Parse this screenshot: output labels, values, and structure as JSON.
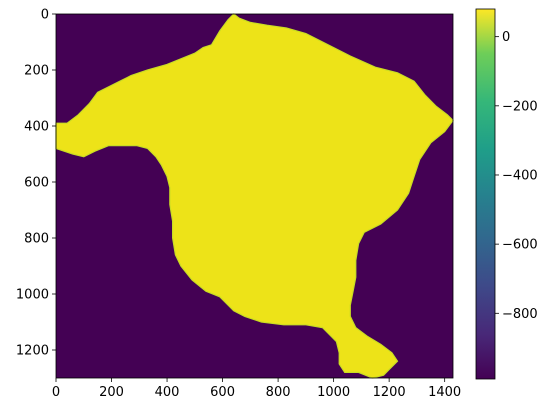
{
  "chart_data": {
    "type": "heatmap",
    "title": "",
    "xlabel": "",
    "ylabel": "",
    "xlim": [
      0,
      1430
    ],
    "ylim": [
      1300,
      0
    ],
    "y_axis_inverted": true,
    "x_ticks": [
      0,
      200,
      400,
      600,
      800,
      1000,
      1200,
      1400
    ],
    "x_tick_labels": [
      "0",
      "200",
      "400",
      "600",
      "800",
      "1000",
      "1200",
      "1400"
    ],
    "y_ticks": [
      0,
      200,
      400,
      600,
      800,
      1000,
      1200
    ],
    "y_tick_labels": [
      "0",
      "200",
      "400",
      "600",
      "800",
      "1000",
      "1200"
    ],
    "colormap": "viridis",
    "colorbar": {
      "range": [
        -990,
        80
      ],
      "ticks": [
        0,
        -200,
        -400,
        -600,
        -800
      ],
      "tick_labels": [
        "0",
        "−200",
        "−400",
        "−600",
        "−800"
      ]
    },
    "background_value": -990,
    "region_value_approx": 40,
    "region_outline": [
      [
        640,
        0
      ],
      [
        660,
        15
      ],
      [
        700,
        30
      ],
      [
        760,
        40
      ],
      [
        830,
        50
      ],
      [
        900,
        70
      ],
      [
        980,
        110
      ],
      [
        1060,
        150
      ],
      [
        1150,
        190
      ],
      [
        1230,
        210
      ],
      [
        1290,
        240
      ],
      [
        1330,
        290
      ],
      [
        1370,
        330
      ],
      [
        1410,
        360
      ],
      [
        1430,
        380
      ],
      [
        1400,
        420
      ],
      [
        1350,
        460
      ],
      [
        1310,
        520
      ],
      [
        1290,
        580
      ],
      [
        1270,
        640
      ],
      [
        1230,
        700
      ],
      [
        1170,
        750
      ],
      [
        1110,
        780
      ],
      [
        1090,
        820
      ],
      [
        1080,
        880
      ],
      [
        1080,
        940
      ],
      [
        1070,
        990
      ],
      [
        1060,
        1040
      ],
      [
        1060,
        1080
      ],
      [
        1080,
        1120
      ],
      [
        1120,
        1150
      ],
      [
        1170,
        1180
      ],
      [
        1210,
        1210
      ],
      [
        1230,
        1240
      ],
      [
        1200,
        1270
      ],
      [
        1180,
        1290
      ],
      [
        1140,
        1300
      ],
      [
        1090,
        1280
      ],
      [
        1040,
        1280
      ],
      [
        1020,
        1250
      ],
      [
        1020,
        1210
      ],
      [
        1010,
        1170
      ],
      [
        960,
        1120
      ],
      [
        900,
        1110
      ],
      [
        820,
        1110
      ],
      [
        740,
        1100
      ],
      [
        680,
        1080
      ],
      [
        640,
        1060
      ],
      [
        590,
        1010
      ],
      [
        540,
        990
      ],
      [
        490,
        950
      ],
      [
        450,
        900
      ],
      [
        430,
        860
      ],
      [
        420,
        800
      ],
      [
        420,
        740
      ],
      [
        410,
        680
      ],
      [
        410,
        620
      ],
      [
        400,
        580
      ],
      [
        380,
        540
      ],
      [
        360,
        510
      ],
      [
        330,
        480
      ],
      [
        290,
        470
      ],
      [
        240,
        470
      ],
      [
        190,
        470
      ],
      [
        140,
        490
      ],
      [
        100,
        510
      ],
      [
        60,
        500
      ],
      [
        0,
        480
      ],
      [
        0,
        430
      ],
      [
        0,
        390
      ],
      [
        40,
        390
      ],
      [
        80,
        360
      ],
      [
        120,
        320
      ],
      [
        150,
        280
      ],
      [
        190,
        260
      ],
      [
        230,
        240
      ],
      [
        270,
        220
      ],
      [
        330,
        200
      ],
      [
        400,
        180
      ],
      [
        450,
        160
      ],
      [
        500,
        140
      ],
      [
        530,
        120
      ],
      [
        560,
        110
      ],
      [
        590,
        60
      ],
      [
        620,
        20
      ]
    ]
  }
}
